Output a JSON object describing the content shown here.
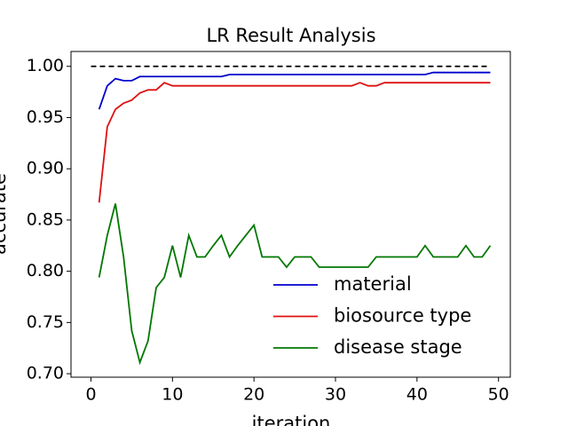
{
  "chart_data": {
    "type": "line",
    "title": "LR Result Analysis",
    "xlabel": "iteration",
    "ylabel": "accurate",
    "x": [
      1,
      2,
      3,
      4,
      5,
      6,
      7,
      8,
      9,
      10,
      11,
      12,
      13,
      14,
      15,
      16,
      17,
      18,
      19,
      20,
      21,
      22,
      23,
      24,
      25,
      26,
      27,
      28,
      29,
      30,
      31,
      32,
      33,
      34,
      35,
      36,
      37,
      38,
      39,
      40,
      41,
      42,
      43,
      44,
      45,
      46,
      47,
      48,
      49
    ],
    "series": [
      {
        "name": "material",
        "color": "#0000cc",
        "values": [
          0.958,
          0.981,
          0.988,
          0.986,
          0.986,
          0.99,
          0.99,
          0.99,
          0.99,
          0.99,
          0.99,
          0.99,
          0.99,
          0.99,
          0.99,
          0.99,
          0.992,
          0.992,
          0.992,
          0.992,
          0.992,
          0.992,
          0.992,
          0.992,
          0.992,
          0.992,
          0.992,
          0.992,
          0.992,
          0.992,
          0.992,
          0.992,
          0.992,
          0.992,
          0.992,
          0.992,
          0.992,
          0.992,
          0.992,
          0.992,
          0.992,
          0.994,
          0.994,
          0.994,
          0.994,
          0.994,
          0.994,
          0.994,
          0.994
        ]
      },
      {
        "name": "biosource type",
        "color": "#dd1111",
        "values": [
          0.867,
          0.941,
          0.958,
          0.964,
          0.967,
          0.974,
          0.977,
          0.977,
          0.984,
          0.981,
          0.981,
          0.981,
          0.981,
          0.981,
          0.981,
          0.981,
          0.981,
          0.981,
          0.981,
          0.981,
          0.981,
          0.981,
          0.981,
          0.981,
          0.981,
          0.981,
          0.981,
          0.981,
          0.981,
          0.981,
          0.981,
          0.981,
          0.984,
          0.981,
          0.981,
          0.984,
          0.984,
          0.984,
          0.984,
          0.984,
          0.984,
          0.984,
          0.984,
          0.984,
          0.984,
          0.984,
          0.984,
          0.984,
          0.984
        ]
      },
      {
        "name": "disease stage",
        "color": "#007700",
        "values": [
          0.794,
          0.835,
          0.866,
          0.814,
          0.742,
          0.711,
          0.732,
          0.784,
          0.794,
          0.825,
          0.794,
          0.835,
          0.814,
          0.814,
          0.825,
          0.835,
          0.814,
          0.825,
          0.835,
          0.845,
          0.814,
          0.814,
          0.814,
          0.804,
          0.814,
          0.814,
          0.814,
          0.804,
          0.804,
          0.804,
          0.804,
          0.804,
          0.804,
          0.804,
          0.814,
          0.814,
          0.814,
          0.814,
          0.814,
          0.814,
          0.825,
          0.814,
          0.814,
          0.814,
          0.814,
          0.825,
          0.814,
          0.814,
          0.825
        ]
      }
    ],
    "reference_line": {
      "y": 1.0,
      "x": [
        0,
        49
      ],
      "color": "#000000",
      "dash": "dashed"
    },
    "xlim": [
      -2.45,
      51.45
    ],
    "ylim": [
      0.6966,
      1.0145
    ],
    "xticks": [
      0,
      10,
      20,
      30,
      40,
      50
    ],
    "yticks": [
      {
        "value": 0.7,
        "label": "0.70"
      },
      {
        "value": 0.75,
        "label": "0.75"
      },
      {
        "value": 0.8,
        "label": "0.80"
      },
      {
        "value": 0.85,
        "label": "0.85"
      },
      {
        "value": 0.9,
        "label": "0.90"
      },
      {
        "value": 0.95,
        "label": "0.95"
      },
      {
        "value": 1.0,
        "label": "1.00"
      }
    ],
    "legend": "lower right"
  }
}
